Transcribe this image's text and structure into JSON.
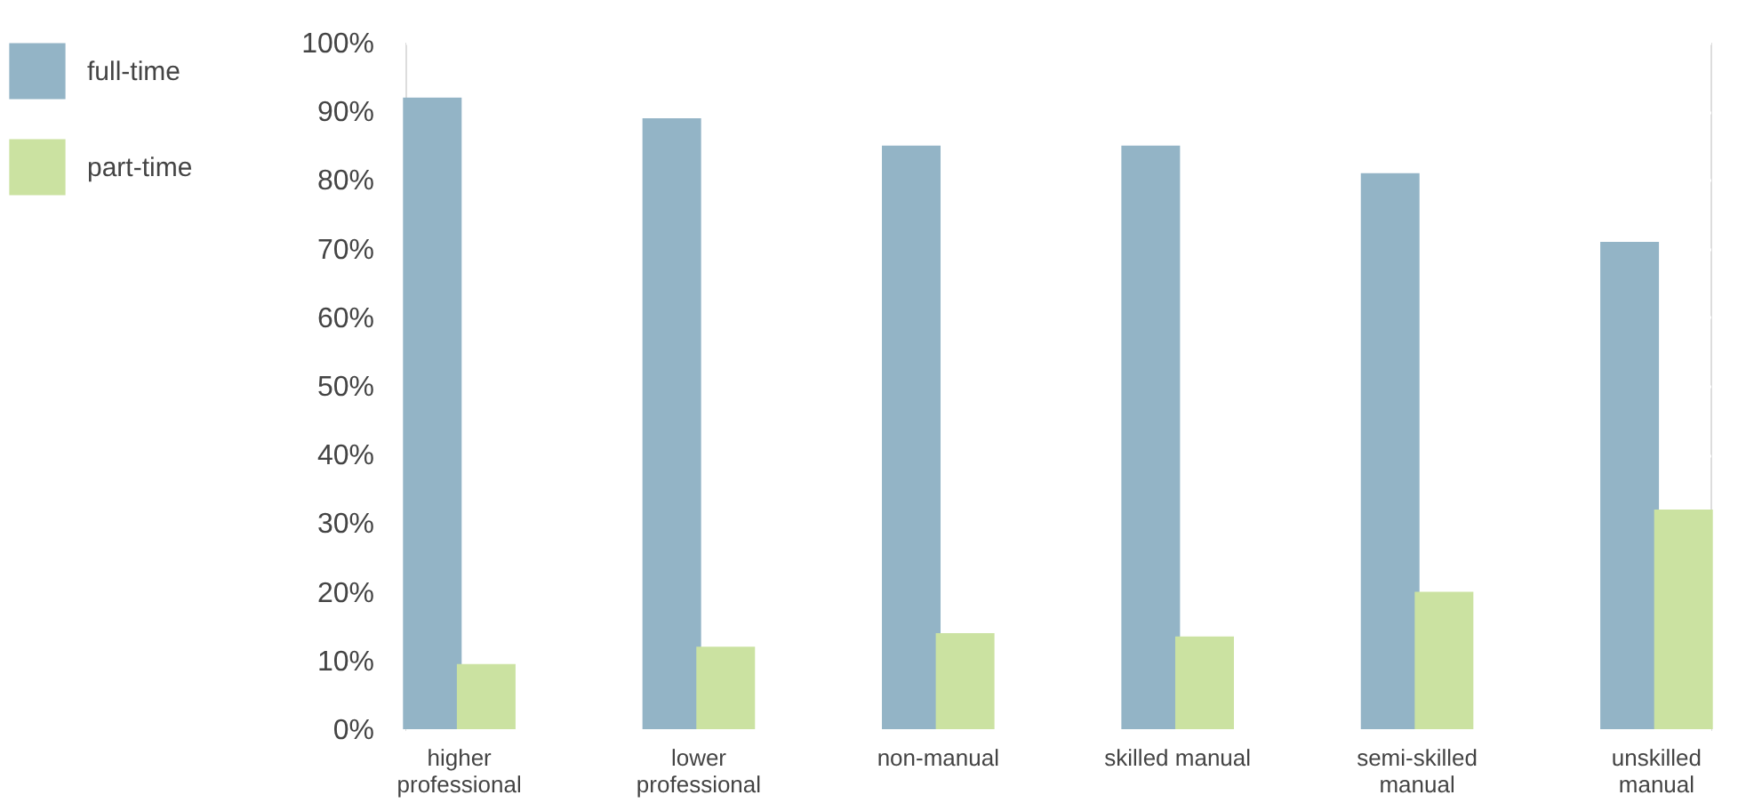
{
  "chart_data": {
    "type": "bar",
    "categories": [
      "higher professional",
      "lower professional",
      "non-manual",
      "skilled manual",
      "semi-skilled manual",
      "unskilled manual"
    ],
    "series": [
      {
        "name": "full-time",
        "color": "#93b4c6",
        "values": [
          92,
          89,
          85,
          85,
          81,
          71
        ]
      },
      {
        "name": "part-time",
        "color": "#cbe2a1",
        "values": [
          9.5,
          12,
          14,
          13.5,
          20,
          32
        ]
      }
    ],
    "ylim": [
      0,
      100
    ],
    "yticks": [
      {
        "value": 0,
        "label": "0%"
      },
      {
        "value": 10,
        "label": "10%"
      },
      {
        "value": 20,
        "label": "20%"
      },
      {
        "value": 30,
        "label": "30%"
      },
      {
        "value": 40,
        "label": "40%"
      },
      {
        "value": 50,
        "label": "50%"
      },
      {
        "value": 60,
        "label": "60%"
      },
      {
        "value": 70,
        "label": "70%"
      },
      {
        "value": 80,
        "label": "80%"
      },
      {
        "value": 90,
        "label": "90%"
      },
      {
        "value": 100,
        "label": "100%"
      }
    ],
    "grid": "y",
    "legend": "left"
  }
}
